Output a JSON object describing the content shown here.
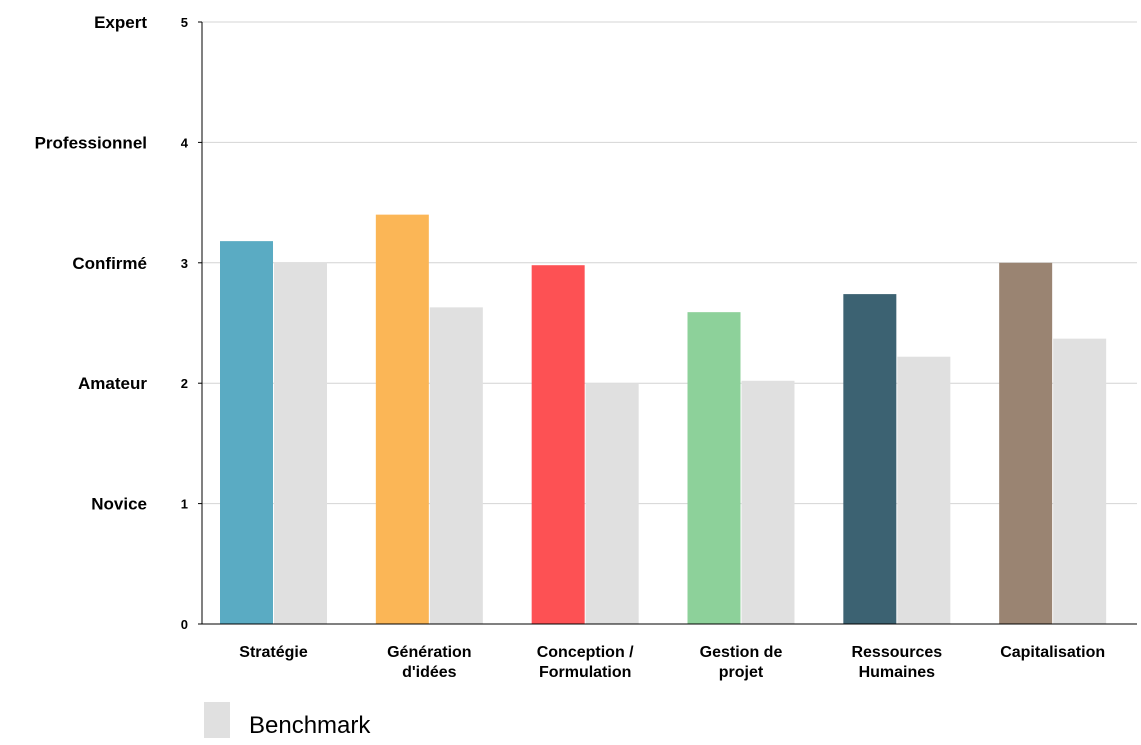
{
  "chart_data": {
    "type": "bar",
    "categories": [
      [
        "Stratégie"
      ],
      [
        "Génération",
        "d'idées"
      ],
      [
        "Conception /",
        "Formulation"
      ],
      [
        "Gestion de",
        "projet"
      ],
      [
        "Ressources",
        "Humaines"
      ],
      [
        "Capitalisation"
      ]
    ],
    "series": [
      {
        "values": [
          3.18,
          3.4,
          2.98,
          2.59,
          2.74,
          3.0
        ],
        "colors": [
          "#5aabc3",
          "#fbb656",
          "#fd5154",
          "#8dd19a",
          "#3c6272",
          "#9a8472"
        ]
      },
      {
        "name": "Benchmark",
        "values": [
          3.0,
          2.63,
          2.0,
          2.02,
          2.22,
          2.37
        ],
        "color": "#e0e0e0"
      }
    ],
    "ylim": [
      0,
      5
    ],
    "yticks": [
      0,
      1,
      2,
      3,
      4,
      5
    ],
    "level_labels": [
      {
        "value": 5,
        "label": "Expert"
      },
      {
        "value": 4,
        "label": "Professionnel"
      },
      {
        "value": 3,
        "label": "Confirmé"
      },
      {
        "value": 2,
        "label": "Amateur"
      },
      {
        "value": 1,
        "label": "Novice"
      }
    ],
    "grid": true,
    "gridline_color": "#d4d4d4",
    "legend_position": "bottom-left",
    "title": "",
    "xlabel": "",
    "ylabel": ""
  }
}
